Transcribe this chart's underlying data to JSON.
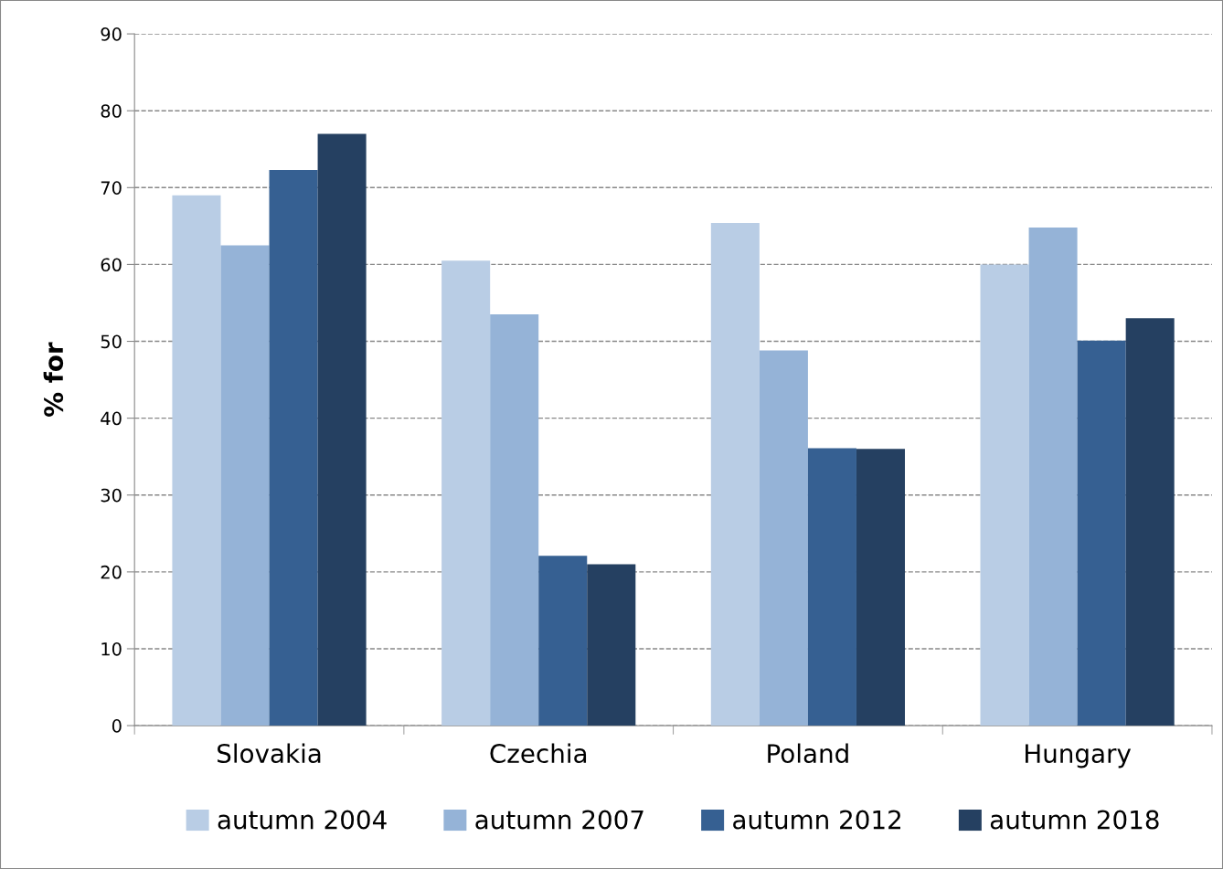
{
  "chart_data": {
    "type": "bar",
    "ylabel": "% for",
    "categories": [
      "Slovakia",
      "Czechia",
      "Poland",
      "Hungary"
    ],
    "series": [
      {
        "name": "autumn 2004",
        "color": "#b9cde5",
        "values": [
          69.0,
          60.5,
          65.4,
          60.0
        ]
      },
      {
        "name": "autumn 2007",
        "color": "#95b3d7",
        "values": [
          62.5,
          53.5,
          48.8,
          64.8
        ]
      },
      {
        "name": "autumn 2012",
        "color": "#366092",
        "values": [
          72.3,
          22.1,
          36.1,
          50.1
        ]
      },
      {
        "name": "autumn 2018",
        "color": "#254061",
        "values": [
          77.0,
          21.0,
          36.0,
          53.0
        ]
      }
    ],
    "ylim": [
      0,
      90
    ],
    "yticks": [
      0,
      10,
      20,
      30,
      40,
      50,
      60,
      70,
      80,
      90
    ],
    "grid": "y",
    "legend": "bottom"
  }
}
